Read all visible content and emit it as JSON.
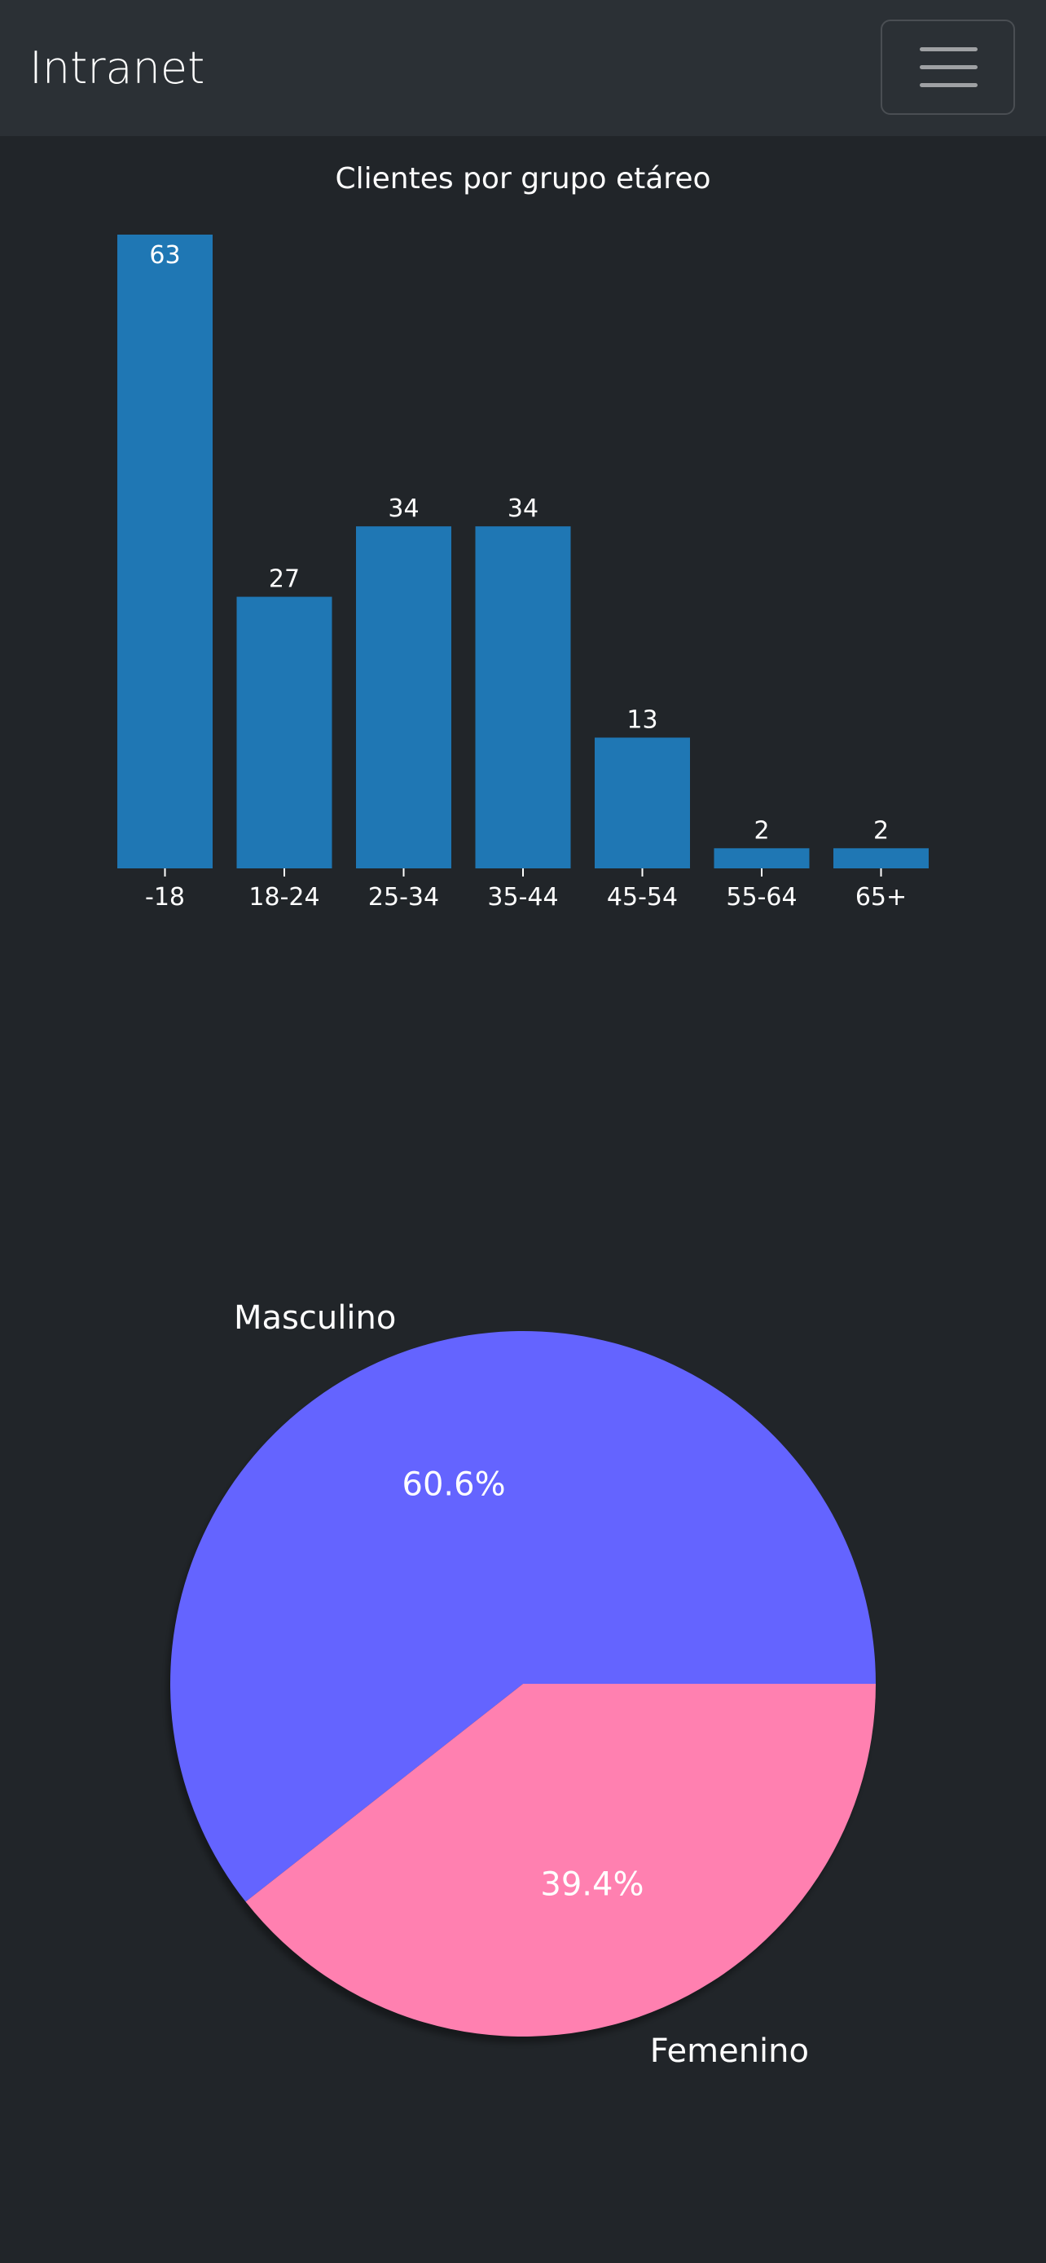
{
  "navbar": {
    "brand": "Intranet",
    "menu_icon": "hamburger-menu-icon"
  },
  "theme": {
    "background": "#212529",
    "navbar_background": "#2b3035",
    "text": "#ffffff"
  },
  "chart_data": [
    {
      "type": "bar",
      "title": "Clientes por grupo etáreo",
      "categories": [
        "-18",
        "18-24",
        "25-34",
        "35-44",
        "45-54",
        "55-64",
        "65+"
      ],
      "values": [
        63,
        27,
        34,
        34,
        13,
        2,
        2
      ],
      "data_labels": [
        "63",
        "27",
        "34",
        "34",
        "13",
        "2",
        "2"
      ],
      "color": "#1f77b4",
      "ylim": [
        0,
        63
      ]
    },
    {
      "type": "pie",
      "slices": [
        {
          "label": "Masculino",
          "value": 60.6,
          "pct_label": "60.6%",
          "color": "#6464ff"
        },
        {
          "label": "Femenino",
          "value": 39.4,
          "pct_label": "39.4%",
          "color": "#ff80b0"
        }
      ],
      "shadow": true
    }
  ]
}
